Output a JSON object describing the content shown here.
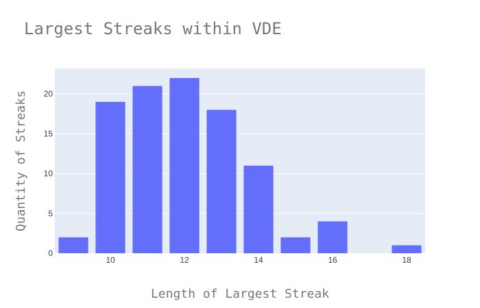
{
  "chart_data": {
    "type": "bar",
    "title": "Largest Streaks within VDE",
    "xlabel": "Length of Largest Streak",
    "ylabel": "Quantity of Streaks",
    "x": [
      9,
      10,
      11,
      12,
      13,
      14,
      15,
      16,
      17,
      18
    ],
    "values": [
      2,
      19,
      21,
      22,
      18,
      11,
      2,
      4,
      0,
      1
    ],
    "xlim": [
      8.5,
      18.5
    ],
    "ylim": [
      0,
      23.2
    ],
    "xticks": [
      10,
      12,
      14,
      16,
      18
    ],
    "yticks": [
      0,
      5,
      10,
      15,
      20
    ],
    "grid": true,
    "colors": {
      "bar": "#636efa",
      "plot_bg": "#e5ecf6",
      "grid": "#ffffff",
      "title": "#777777",
      "tick": "#2a3f5f"
    }
  }
}
